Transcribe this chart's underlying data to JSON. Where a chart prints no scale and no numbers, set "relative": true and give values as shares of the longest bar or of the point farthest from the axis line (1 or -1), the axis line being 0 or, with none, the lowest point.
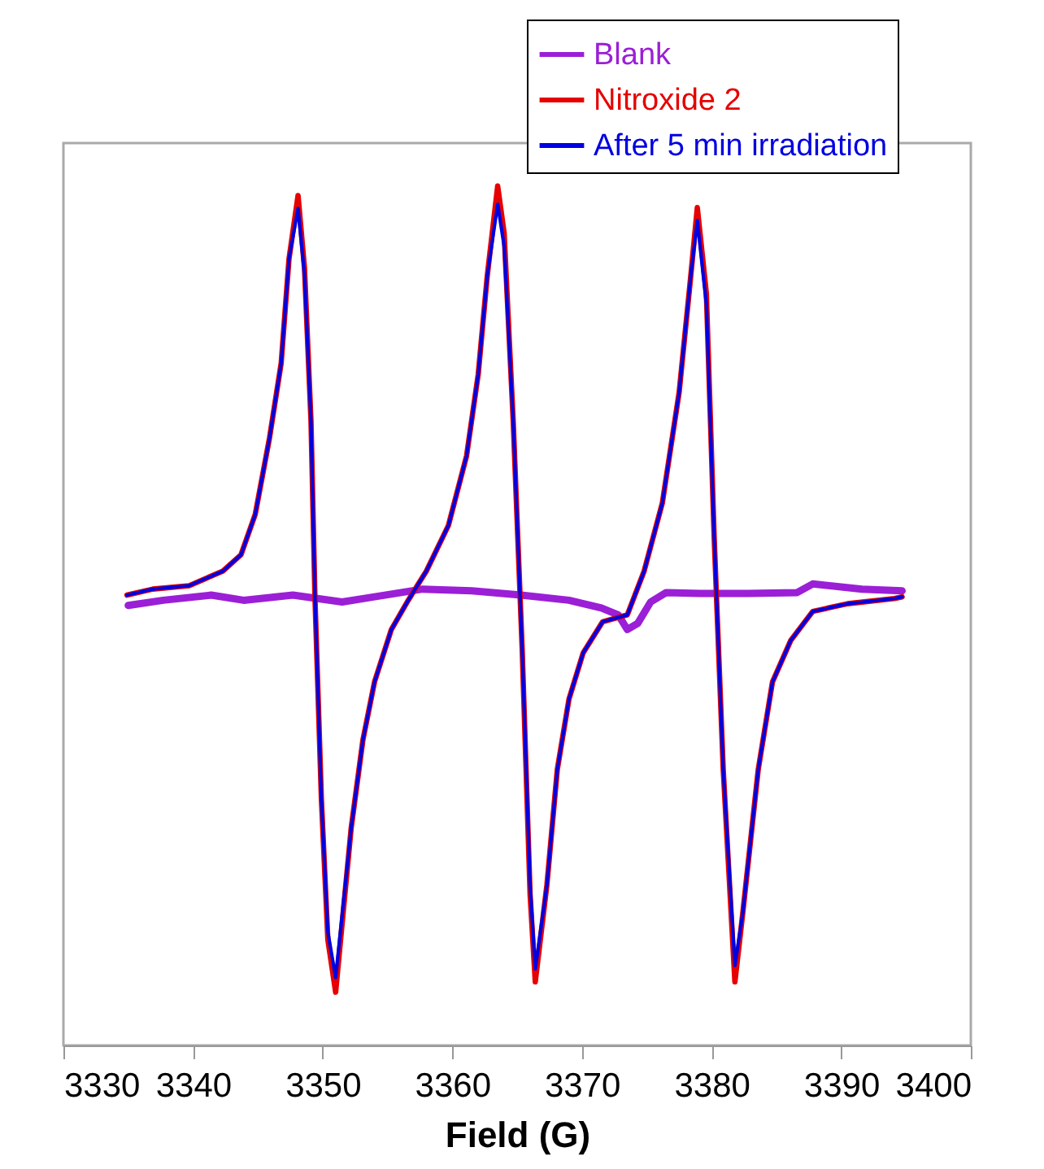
{
  "chart_data": {
    "type": "line",
    "xlabel": "Field (G)",
    "relative": true,
    "legend": "top right",
    "xlim": [
      3330,
      3400
    ],
    "xticks": [
      3330,
      3340,
      3350,
      3360,
      3370,
      3380,
      3390,
      3400
    ],
    "x": [
      3334.9,
      3336.9,
      3339.7,
      3342.3,
      3343.7,
      3344.8,
      3345.9,
      3346.8,
      3347.4,
      3348.1,
      3348.6,
      3349.1,
      3349.4,
      3349.9,
      3350.4,
      3351.0,
      3352.2,
      3353.1,
      3354.0,
      3355.3,
      3356.6,
      3358.0,
      3359.7,
      3361.1,
      3362.0,
      3362.7,
      3363.5,
      3364.0,
      3364.7,
      3365.4,
      3366.0,
      3366.4,
      3367.3,
      3368.1,
      3369.0,
      3370.1,
      3371.6,
      3373.5,
      3374.8,
      3376.2,
      3377.5,
      3378.4,
      3378.9,
      3379.6,
      3380.2,
      3380.9,
      3381.8,
      3382.4,
      3383.6,
      3384.7,
      3386.1,
      3387.8,
      3390.5,
      3394.1,
      3394.7
    ],
    "series": [
      {
        "name": "Blank",
        "color": "#9b1fd6",
        "x": [
          3335.0,
          3337.7,
          3341.4,
          3343.9,
          3347.7,
          3351.5,
          3354.0,
          3357.7,
          3361.5,
          3365.3,
          3369.0,
          3371.5,
          3372.8,
          3373.5,
          3374.3,
          3375.3,
          3376.5,
          3379.1,
          3382.8,
          3386.6,
          3387.8,
          3391.6,
          3394.7
        ],
        "values": [
          0.512,
          0.518,
          0.524,
          0.518,
          0.524,
          0.516,
          0.522,
          0.531,
          0.529,
          0.524,
          0.518,
          0.509,
          0.501,
          0.484,
          0.491,
          0.516,
          0.527,
          0.526,
          0.526,
          0.527,
          0.537,
          0.531,
          0.529
        ]
      },
      {
        "name": "Nitroxide 2",
        "color": "#e60000",
        "values": [
          0.524,
          0.531,
          0.535,
          0.552,
          0.571,
          0.618,
          0.707,
          0.794,
          0.915,
          0.989,
          0.904,
          0.726,
          0.524,
          0.287,
          0.123,
          0.062,
          0.253,
          0.355,
          0.423,
          0.484,
          0.518,
          0.552,
          0.605,
          0.686,
          0.781,
          0.896,
          1,
          0.945,
          0.726,
          0.457,
          0.176,
          0.074,
          0.187,
          0.321,
          0.403,
          0.457,
          0.493,
          0.501,
          0.552,
          0.631,
          0.76,
          0.896,
          0.975,
          0.875,
          0.592,
          0.321,
          0.074,
          0.153,
          0.321,
          0.423,
          0.471,
          0.505,
          0.514,
          0.52,
          0.522
        ]
      },
      {
        "name": "After 5 min irradiation",
        "color": "#0000e0",
        "values": [
          0.524,
          0.531,
          0.535,
          0.552,
          0.571,
          0.618,
          0.707,
          0.794,
          0.915,
          0.974,
          0.896,
          0.726,
          0.524,
          0.287,
          0.132,
          0.079,
          0.253,
          0.355,
          0.423,
          0.484,
          0.518,
          0.552,
          0.605,
          0.686,
          0.781,
          0.896,
          0.979,
          0.93,
          0.726,
          0.457,
          0.187,
          0.089,
          0.187,
          0.321,
          0.403,
          0.457,
          0.493,
          0.501,
          0.552,
          0.631,
          0.76,
          0.896,
          0.96,
          0.862,
          0.592,
          0.321,
          0.093,
          0.153,
          0.321,
          0.423,
          0.471,
          0.505,
          0.514,
          0.52,
          0.522
        ]
      }
    ]
  }
}
